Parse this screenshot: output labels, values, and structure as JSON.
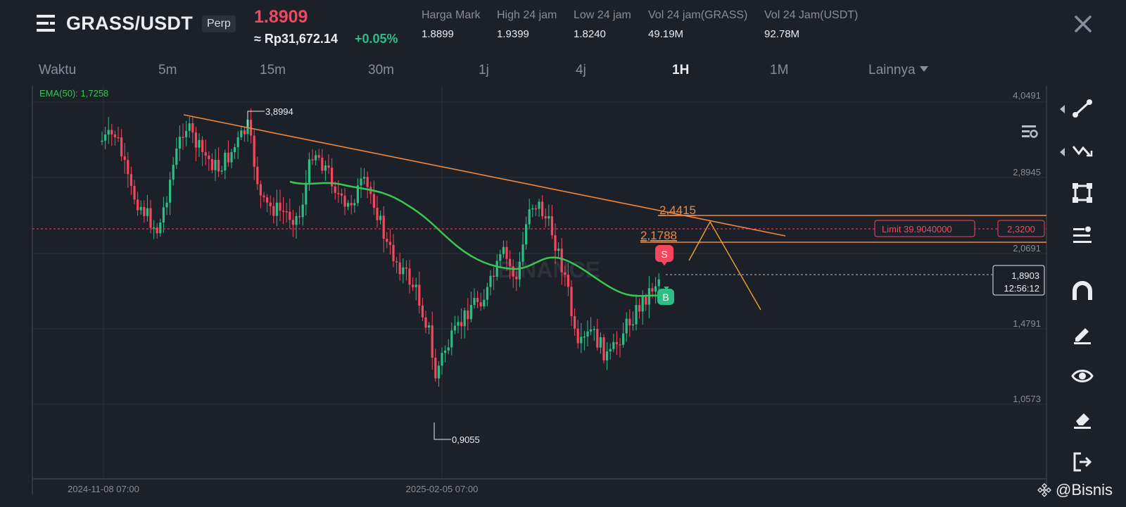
{
  "header": {
    "pair": "GRASS/USDT",
    "badge": "Perp",
    "last_price": "1.8909",
    "idr_price": "≈ Rp31,672.14",
    "change": "+0.05%",
    "stats": [
      {
        "label": "Harga Mark",
        "value": "1.8899"
      },
      {
        "label": "High 24 jam",
        "value": "1.9399"
      },
      {
        "label": "Low 24 jam",
        "value": "1.8240"
      },
      {
        "label": "Vol 24 jam(GRASS)",
        "value": "49.19M"
      },
      {
        "label": "Vol 24 Jam(USDT)",
        "value": "92.78M"
      }
    ]
  },
  "timeframes": [
    "Waktu",
    "5m",
    "15m",
    "30m",
    "1j",
    "4j",
    "1H",
    "1M"
  ],
  "active_timeframe": "1H",
  "more_label": "Lainnya",
  "chart": {
    "indicator": "EMA(50): 1,7258",
    "price_axis": [
      "4,0491",
      "2,8945",
      "2,0691",
      "1,4791",
      "1,0573"
    ],
    "date_axis": [
      "2024-11-08 07:00",
      "2025-02-05 07:00"
    ],
    "high_marker": "3,8994",
    "low_marker": "0,9055",
    "annotations": [
      "2,4415",
      "2,1788"
    ],
    "limit_label": "Limit  39.9040000",
    "limit_price": "2,3200",
    "current_price": "1,8903",
    "countdown": "12:56:12",
    "sell_marker": "S",
    "buy_marker": "B",
    "watermark": "BINANCE",
    "credit": "@Bisnis"
  },
  "colors": {
    "up": "#2ebd85",
    "down": "#f6465d",
    "trend": "#f0883e",
    "ema": "#3bc553",
    "bg": "#1b2029"
  }
}
